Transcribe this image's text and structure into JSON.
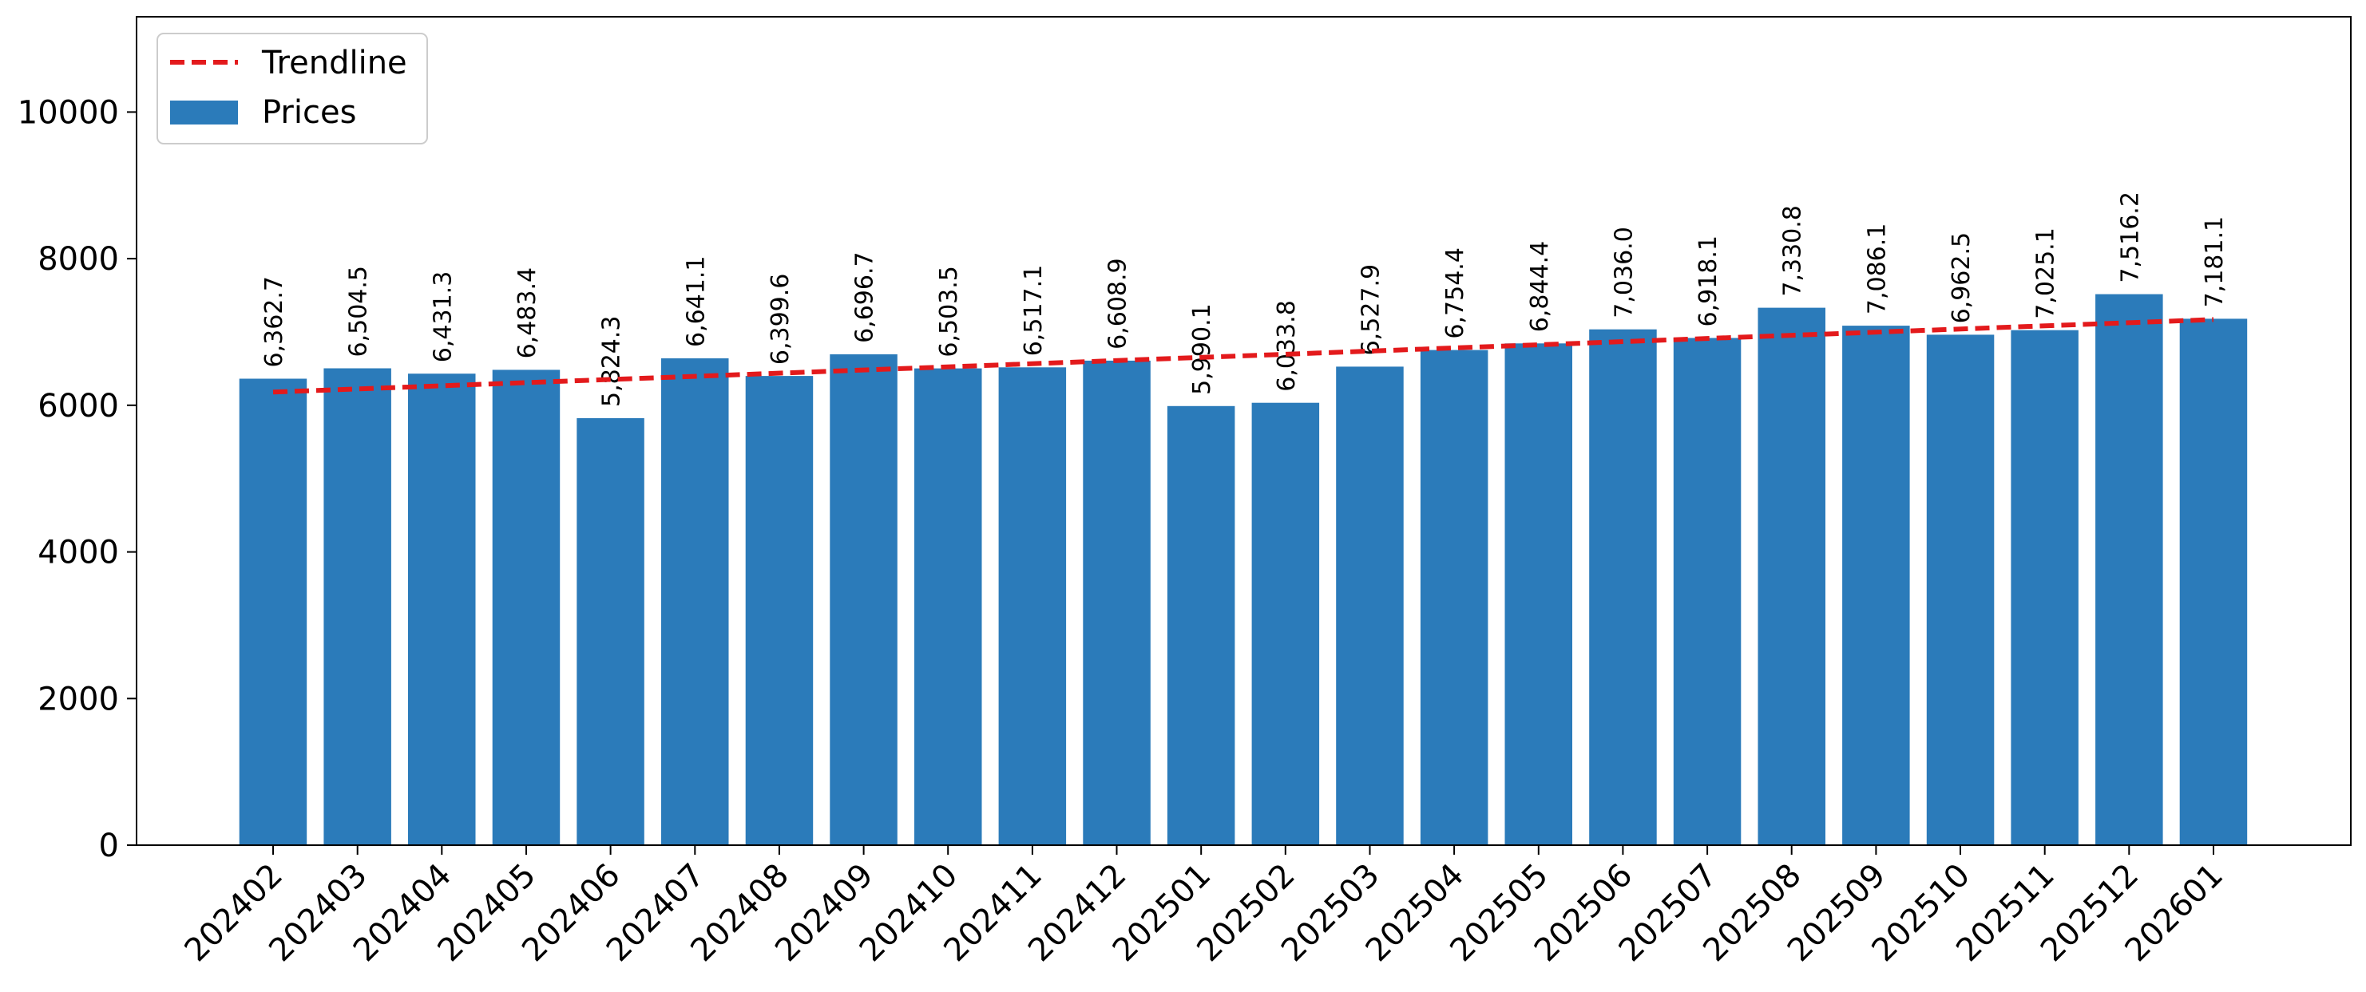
{
  "chart_data": {
    "type": "bar",
    "categories": [
      "202402",
      "202403",
      "202404",
      "202405",
      "202406",
      "202407",
      "202408",
      "202409",
      "202410",
      "202411",
      "202412",
      "202501",
      "202502",
      "202503",
      "202504",
      "202505",
      "202506",
      "202507",
      "202508",
      "202509",
      "202510",
      "202511",
      "202512",
      "202601"
    ],
    "series": [
      {
        "name": "Prices",
        "values": [
          6362.7,
          6504.5,
          6431.3,
          6483.4,
          5824.3,
          6641.1,
          6399.6,
          6696.7,
          6503.5,
          6517.1,
          6608.9,
          5990.1,
          6033.8,
          6527.9,
          6754.4,
          6844.4,
          7036.0,
          6918.1,
          7330.8,
          7086.1,
          6962.5,
          7025.1,
          7516.2,
          7181.1
        ],
        "data_labels": [
          "6,362.7",
          "6,504.5",
          "6,431.3",
          "6,483.4",
          "5,824.3",
          "6,641.1",
          "6,399.6",
          "6,696.7",
          "6,503.5",
          "6,517.1",
          "6,608.9",
          "5,990.1",
          "6,033.8",
          "6,527.9",
          "6,754.4",
          "6,844.4",
          "7,036.0",
          "6,918.1",
          "7,330.8",
          "7,086.1",
          "6,962.5",
          "7,025.1",
          "7,516.2",
          "7,181.1"
        ],
        "color": "#2b7bba"
      },
      {
        "name": "Trendline",
        "type": "line",
        "style": "dashed",
        "color": "#e31a1c",
        "start": 6180,
        "end": 7170
      }
    ],
    "yticks": [
      0,
      2000,
      4000,
      6000,
      8000,
      10000
    ],
    "ylim": [
      0,
      11300
    ],
    "legend": "top-left",
    "grid": false
  }
}
